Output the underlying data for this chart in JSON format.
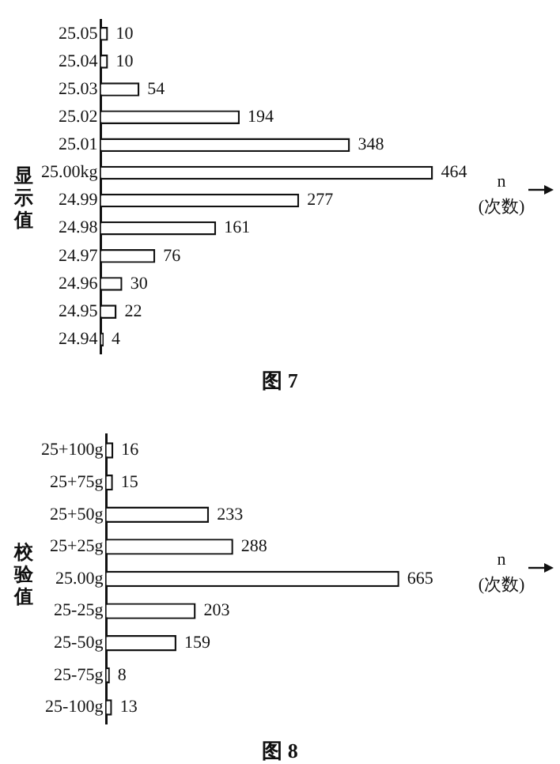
{
  "chart_data": [
    {
      "type": "bar",
      "orientation": "horizontal",
      "title": "图 7",
      "ylabel": "显示值",
      "xlabel": "n (次数)",
      "categories": [
        "25.05",
        "25.04",
        "25.03",
        "25.02",
        "25.01",
        "25.00kg",
        "24.99",
        "24.98",
        "24.97",
        "24.96",
        "24.95",
        "24.94"
      ],
      "values": [
        10,
        10,
        54,
        194,
        348,
        464,
        277,
        161,
        76,
        30,
        22,
        4
      ],
      "color": "#ffffff",
      "data_labels": true,
      "grid": false,
      "legend": false
    },
    {
      "type": "bar",
      "orientation": "horizontal",
      "title": "图 8",
      "ylabel": "校验值",
      "xlabel": "n (次数)",
      "categories": [
        "25+100g",
        "25+75g",
        "25+50g",
        "25+25g",
        "25.00g",
        "25-25g",
        "25-50g",
        "25-75g",
        "25-100g"
      ],
      "values": [
        16,
        15,
        233,
        288,
        665,
        203,
        159,
        8,
        13
      ],
      "color": "#ffffff",
      "data_labels": true,
      "grid": false,
      "legend": false
    }
  ]
}
